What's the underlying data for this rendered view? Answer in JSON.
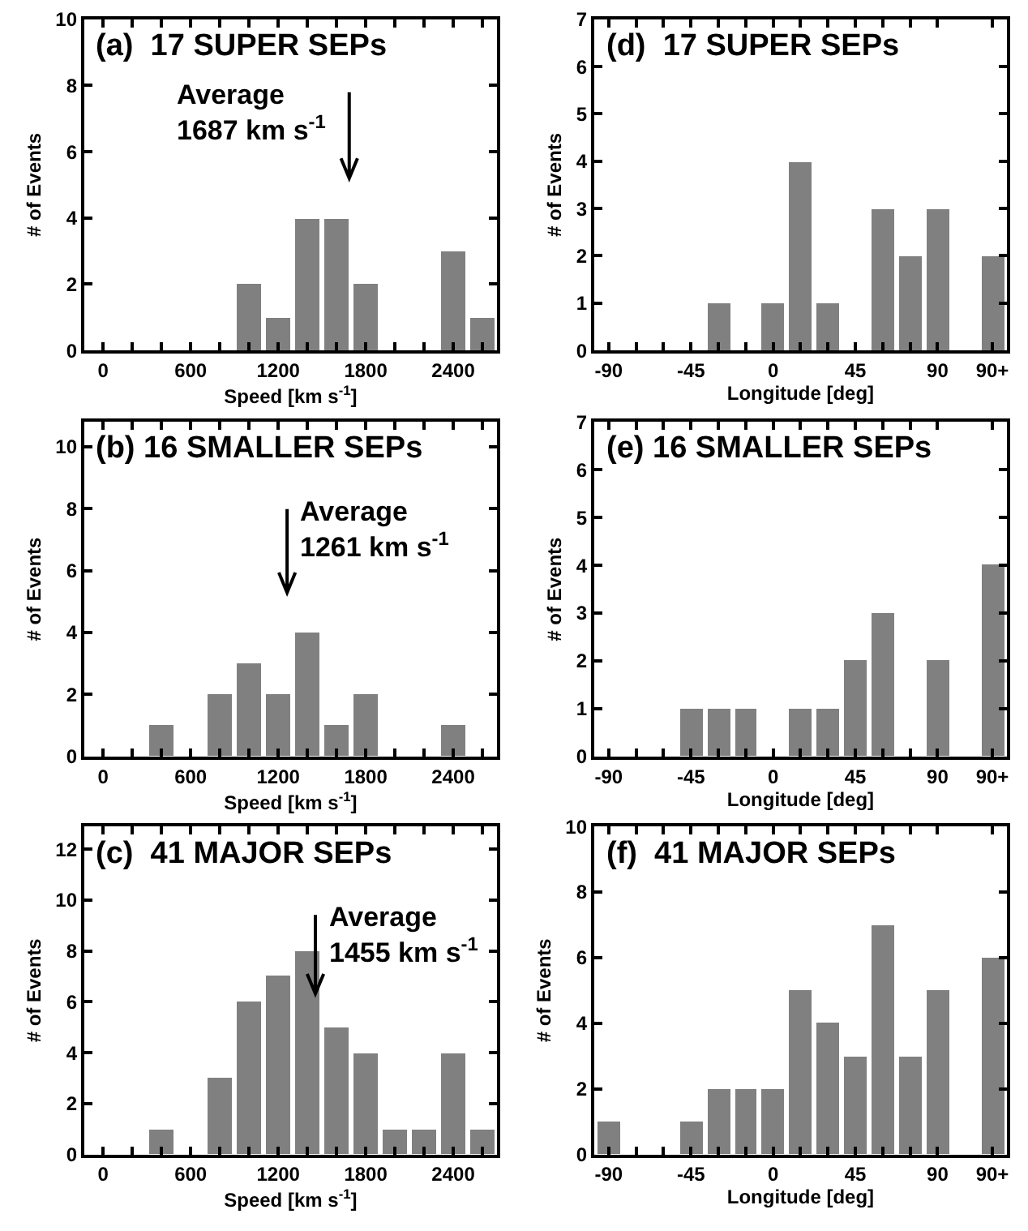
{
  "chart_data": [
    {
      "type": "histogram",
      "title": "(a)  17 SUPER SEPs",
      "xlabel": "Speed [km s$^{-1}$]",
      "ylabel": "# of Events",
      "color": "#808080",
      "bins": [
        300,
        500,
        700,
        900,
        1100,
        1300,
        1500,
        1700,
        1900,
        2100,
        2300,
        2500,
        2700
      ],
      "values": [
        0,
        0,
        0,
        2,
        1,
        4,
        4,
        2,
        0,
        0,
        3,
        1
      ],
      "xlim": [
        -130,
        2700
      ],
      "ylim": [
        0,
        10
      ],
      "xticks": [
        0,
        {
          "value": 200,
          "label": null
        },
        {
          "value": 400,
          "label": null
        },
        600,
        {
          "value": 800,
          "label": null
        },
        {
          "value": 1000,
          "label": null
        },
        1200,
        {
          "value": 1400,
          "label": null
        },
        {
          "value": 1600,
          "label": null
        },
        1800,
        {
          "value": 2000,
          "label": null
        },
        {
          "value": 2200,
          "label": null
        },
        2400,
        {
          "value": 2600,
          "label": null
        }
      ],
      "yticks": [
        0,
        2,
        4,
        6,
        8,
        10
      ],
      "ref_lines": [
        {
          "axis": "x",
          "value": 1687,
          "label": "Average\n1687 km s$^{-1}$"
        }
      ]
    },
    {
      "type": "histogram",
      "title": "(d)  17 SUPER SEPs",
      "xlabel": "Longitude [deg]",
      "ylabel": "# of Events",
      "color": "#808080",
      "bins": [
        -97.5,
        -82.5,
        -67.5,
        -52.5,
        -37.5,
        -22.5,
        -7.5,
        7.5,
        22.5,
        37.5,
        52.5,
        67.5,
        82.5,
        97.5,
        112.5,
        127.5
      ],
      "values": [
        0,
        0,
        0,
        0,
        1,
        0,
        1,
        4,
        1,
        0,
        3,
        2,
        3,
        0,
        2
      ],
      "xlim": [
        -98,
        128
      ],
      "ylim": [
        0,
        7
      ],
      "xticks": [
        -90,
        {
          "value": -75,
          "label": null
        },
        {
          "value": -60,
          "label": null
        },
        -45,
        {
          "value": -30,
          "label": null
        },
        {
          "value": -15,
          "label": null
        },
        0,
        {
          "value": 15,
          "label": null
        },
        {
          "value": 30,
          "label": null
        },
        45,
        {
          "value": 60,
          "label": null
        },
        {
          "value": 75,
          "label": null
        },
        90,
        {
          "value": 120,
          "label": "90+"
        }
      ],
      "yticks": [
        0,
        1,
        2,
        3,
        4,
        5,
        6,
        7
      ]
    },
    {
      "type": "histogram",
      "title": "(b) 16 SMALLER SEPs",
      "xlabel": "Speed [km s$^{-1}$]",
      "ylabel": "# of Events",
      "color": "#808080",
      "bins": [
        300,
        500,
        700,
        900,
        1100,
        1300,
        1500,
        1700,
        1900,
        2100,
        2300,
        2500,
        2700
      ],
      "values": [
        1,
        0,
        2,
        3,
        2,
        4,
        1,
        2,
        0,
        0,
        1,
        0
      ],
      "xlim": [
        -130,
        2700
      ],
      "ylim": [
        0,
        10.8
      ],
      "xticks": [
        0,
        {
          "value": 200,
          "label": null
        },
        {
          "value": 400,
          "label": null
        },
        600,
        {
          "value": 800,
          "label": null
        },
        {
          "value": 1000,
          "label": null
        },
        1200,
        {
          "value": 1400,
          "label": null
        },
        {
          "value": 1600,
          "label": null
        },
        1800,
        {
          "value": 2000,
          "label": null
        },
        {
          "value": 2200,
          "label": null
        },
        2400,
        {
          "value": 2600,
          "label": null
        }
      ],
      "yticks": [
        0,
        2,
        4,
        6,
        8,
        10
      ],
      "ref_lines": [
        {
          "axis": "x",
          "value": 1261,
          "label": "Average\n1261 km s$^{-1}$"
        }
      ]
    },
    {
      "type": "histogram",
      "title": "(e) 16 SMALLER SEPs",
      "xlabel": "Longitude [deg]",
      "ylabel": "# of Events",
      "color": "#808080",
      "bins": [
        -97.5,
        -82.5,
        -67.5,
        -52.5,
        -37.5,
        -22.5,
        -7.5,
        7.5,
        22.5,
        37.5,
        52.5,
        67.5,
        82.5,
        97.5,
        112.5,
        127.5
      ],
      "values": [
        0,
        0,
        0,
        1,
        1,
        1,
        0,
        1,
        1,
        2,
        3,
        0,
        2,
        0,
        4
      ],
      "xlim": [
        -98,
        128
      ],
      "ylim": [
        0,
        7
      ],
      "xticks": [
        -90,
        {
          "value": -75,
          "label": null
        },
        {
          "value": -60,
          "label": null
        },
        -45,
        {
          "value": -30,
          "label": null
        },
        {
          "value": -15,
          "label": null
        },
        0,
        {
          "value": 15,
          "label": null
        },
        {
          "value": 30,
          "label": null
        },
        45,
        {
          "value": 60,
          "label": null
        },
        {
          "value": 75,
          "label": null
        },
        90,
        {
          "value": 120,
          "label": "90+"
        }
      ],
      "yticks": [
        0,
        1,
        2,
        3,
        4,
        5,
        6,
        7
      ]
    },
    {
      "type": "histogram",
      "title": "(c)  41 MAJOR SEPs",
      "xlabel": "Speed [km s$^{-1}$]",
      "ylabel": "# of Events",
      "color": "#808080",
      "bins": [
        300,
        500,
        700,
        900,
        1100,
        1300,
        1500,
        1700,
        1900,
        2100,
        2300,
        2500,
        2700
      ],
      "values": [
        1,
        0,
        3,
        6,
        7,
        8,
        5,
        4,
        1,
        1,
        4,
        1
      ],
      "xlim": [
        -130,
        2700
      ],
      "ylim": [
        0,
        12.9
      ],
      "xticks": [
        0,
        {
          "value": 200,
          "label": null
        },
        {
          "value": 400,
          "label": null
        },
        600,
        {
          "value": 800,
          "label": null
        },
        {
          "value": 1000,
          "label": null
        },
        1200,
        {
          "value": 1400,
          "label": null
        },
        {
          "value": 1600,
          "label": null
        },
        1800,
        {
          "value": 2000,
          "label": null
        },
        {
          "value": 2200,
          "label": null
        },
        2400,
        {
          "value": 2600,
          "label": null
        }
      ],
      "yticks": [
        0,
        2,
        4,
        6,
        8,
        10,
        12
      ],
      "ref_lines": [
        {
          "axis": "x",
          "value": 1455,
          "label": "Average\n1455 km s$^{-1}$"
        }
      ]
    },
    {
      "type": "histogram",
      "title": "(f)  41 MAJOR SEPs",
      "xlabel": "Longitude [deg]",
      "ylabel": "# of Events",
      "color": "#808080",
      "bins": [
        -97.5,
        -82.5,
        -67.5,
        -52.5,
        -37.5,
        -22.5,
        -7.5,
        7.5,
        22.5,
        37.5,
        52.5,
        67.5,
        82.5,
        97.5,
        112.5,
        127.5
      ],
      "values": [
        1,
        0,
        0,
        1,
        2,
        2,
        2,
        5,
        4,
        3,
        7,
        3,
        5,
        0,
        6
      ],
      "xlim": [
        -98,
        128
      ],
      "ylim": [
        0,
        10
      ],
      "xticks": [
        -90,
        {
          "value": -75,
          "label": null
        },
        {
          "value": -60,
          "label": null
        },
        -45,
        {
          "value": -30,
          "label": null
        },
        {
          "value": -15,
          "label": null
        },
        0,
        {
          "value": 15,
          "label": null
        },
        {
          "value": 30,
          "label": null
        },
        45,
        {
          "value": 60,
          "label": null
        },
        {
          "value": 75,
          "label": null
        },
        90,
        {
          "value": 120,
          "label": "90+"
        }
      ],
      "yticks": [
        0,
        2,
        4,
        6,
        8,
        10
      ]
    }
  ]
}
